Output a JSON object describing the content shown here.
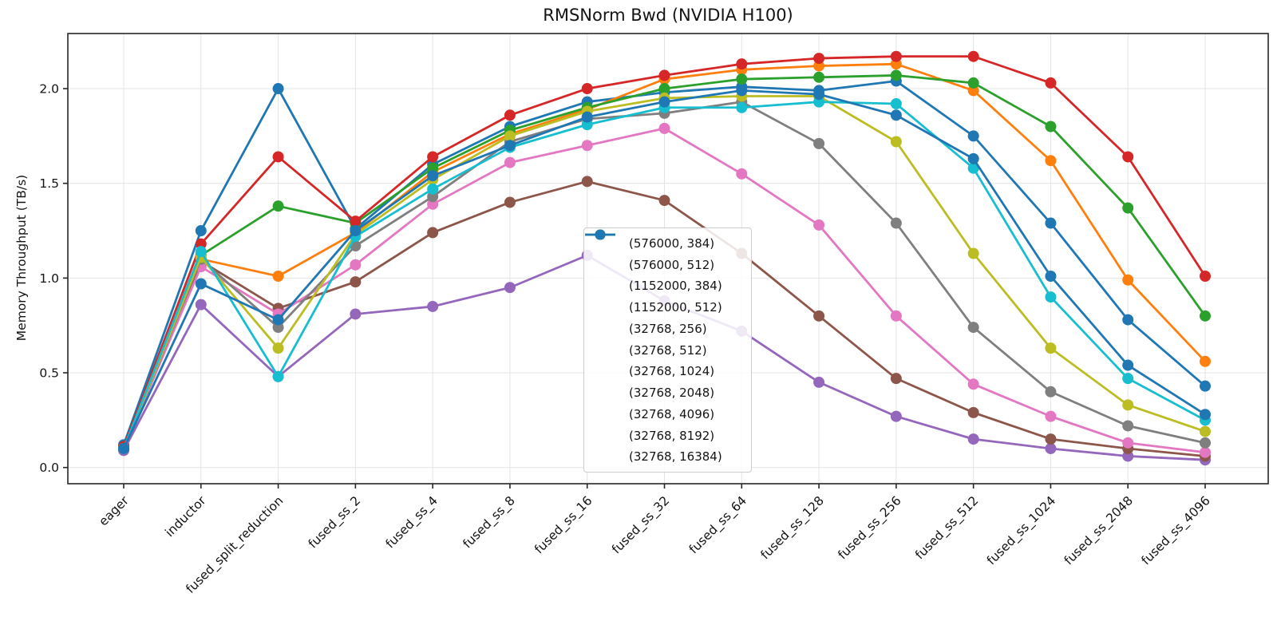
{
  "chart_data": {
    "type": "line",
    "title": "RMSNorm Bwd (NVIDIA H100)",
    "xlabel": "",
    "ylabel": "Memory Throughput (TB/s)",
    "categories": [
      "eager",
      "inductor",
      "fused_split_reduction",
      "fused_ss_2",
      "fused_ss_4",
      "fused_ss_8",
      "fused_ss_16",
      "fused_ss_32",
      "fused_ss_64",
      "fused_ss_128",
      "fused_ss_256",
      "fused_ss_512",
      "fused_ss_1024",
      "fused_ss_2048",
      "fused_ss_4096"
    ],
    "ytick_labels": [
      "0.0",
      "0.5",
      "1.0",
      "1.5",
      "2.0"
    ],
    "ytick_values": [
      0.0,
      0.5,
      1.0,
      1.5,
      2.0
    ],
    "ylim": [
      -0.09,
      2.29
    ],
    "grid": true,
    "legend_position": "center",
    "series": [
      {
        "name": "(576000, 384)",
        "color": "#1f77b4",
        "values": [
          0.12,
          1.25,
          2.0,
          1.26,
          1.6,
          1.8,
          1.93,
          1.98,
          2.01,
          1.99,
          2.04,
          1.75,
          1.29,
          0.78,
          0.43
        ]
      },
      {
        "name": "(576000, 512)",
        "color": "#ff7f0e",
        "values": [
          0.11,
          1.1,
          1.01,
          1.24,
          1.56,
          1.76,
          1.89,
          2.05,
          2.1,
          2.12,
          2.13,
          1.99,
          1.62,
          0.99,
          0.56
        ]
      },
      {
        "name": "(1152000, 384)",
        "color": "#2ca02c",
        "values": [
          0.11,
          1.12,
          1.38,
          1.29,
          1.58,
          1.78,
          1.9,
          2.0,
          2.05,
          2.06,
          2.07,
          2.03,
          1.8,
          1.37,
          0.8
        ]
      },
      {
        "name": "(1152000, 512)",
        "color": "#d62728",
        "values": [
          0.11,
          1.18,
          1.64,
          1.3,
          1.64,
          1.86,
          2.0,
          2.07,
          2.13,
          2.16,
          2.17,
          2.17,
          2.03,
          1.64,
          1.01
        ]
      },
      {
        "name": "(32768, 256)",
        "color": "#9467bd",
        "values": [
          0.09,
          0.86,
          0.48,
          0.81,
          0.85,
          0.95,
          1.12,
          0.88,
          0.72,
          0.45,
          0.27,
          0.15,
          0.1,
          0.06,
          0.04
        ]
      },
      {
        "name": "(32768, 512)",
        "color": "#8c564b",
        "values": [
          0.1,
          1.09,
          0.84,
          0.98,
          1.24,
          1.4,
          1.51,
          1.41,
          1.13,
          0.8,
          0.47,
          0.29,
          0.15,
          0.1,
          0.06
        ]
      },
      {
        "name": "(32768, 1024)",
        "color": "#e377c2",
        "values": [
          0.1,
          1.06,
          0.81,
          1.07,
          1.39,
          1.61,
          1.7,
          1.79,
          1.55,
          1.28,
          0.8,
          0.44,
          0.27,
          0.13,
          0.08
        ]
      },
      {
        "name": "(32768, 2048)",
        "color": "#7f7f7f",
        "values": [
          0.1,
          1.1,
          0.74,
          1.17,
          1.43,
          1.72,
          1.84,
          1.87,
          1.93,
          1.71,
          1.29,
          0.74,
          0.4,
          0.22,
          0.13
        ]
      },
      {
        "name": "(32768, 4096)",
        "color": "#bcbd22",
        "values": [
          0.1,
          1.11,
          0.63,
          1.23,
          1.52,
          1.75,
          1.88,
          1.95,
          1.96,
          1.96,
          1.72,
          1.13,
          0.63,
          0.33,
          0.19
        ]
      },
      {
        "name": "(32768, 8192)",
        "color": "#17becf",
        "values": [
          0.1,
          1.14,
          0.48,
          1.22,
          1.47,
          1.69,
          1.81,
          1.9,
          1.9,
          1.93,
          1.92,
          1.58,
          0.9,
          0.47,
          0.25
        ]
      },
      {
        "name": "(32768, 16384)",
        "color": "#1f77b4",
        "values": [
          0.1,
          0.97,
          0.78,
          1.25,
          1.54,
          1.7,
          1.85,
          1.93,
          1.99,
          1.97,
          1.86,
          1.63,
          1.01,
          0.54,
          0.28
        ]
      }
    ],
    "style": {
      "grid_color": "#e4e4e4",
      "spine_color": "#262626",
      "tick_label_color": "#141414",
      "marker_radius": 7,
      "line_width": 2.8
    }
  }
}
